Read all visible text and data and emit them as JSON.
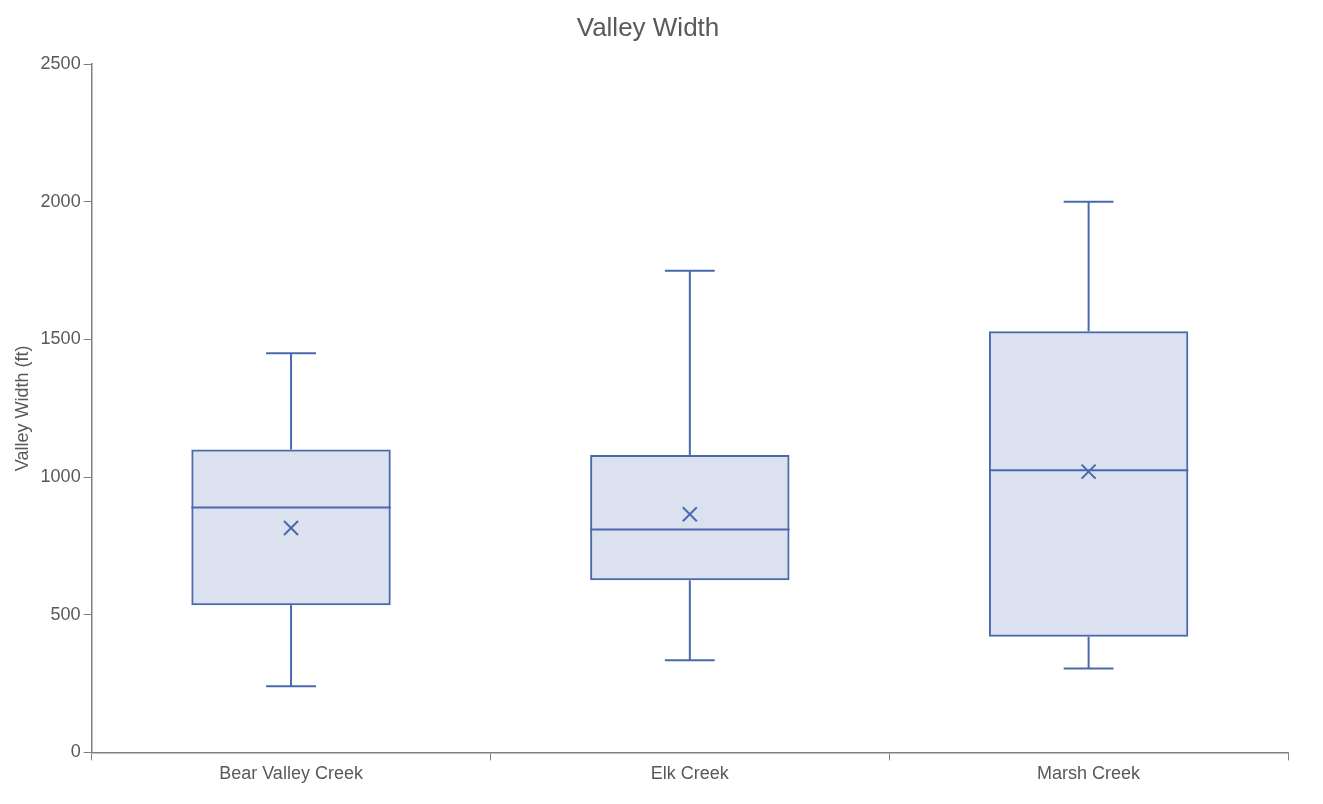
{
  "chart_data": {
    "type": "box",
    "title": "Valley Width",
    "ylabel": "Valley Width (ft)",
    "categories": [
      "Bear Valley Creek",
      "Elk Creek",
      "Marsh Creek"
    ],
    "boxes": [
      {
        "low": 240,
        "q1": 535,
        "median": 890,
        "q3": 1100,
        "high": 1450,
        "mean": 815
      },
      {
        "low": 335,
        "q1": 625,
        "median": 810,
        "q3": 1080,
        "high": 1750,
        "mean": 865
      },
      {
        "low": 305,
        "q1": 420,
        "median": 1025,
        "q3": 1530,
        "high": 2000,
        "mean": 1020
      }
    ],
    "color": "#4a69ad",
    "marker": "cross",
    "ylim": [
      0,
      2500
    ],
    "yticks": [
      0,
      500,
      1000,
      1500,
      2000,
      2500
    ],
    "grid": false,
    "legend": false
  }
}
